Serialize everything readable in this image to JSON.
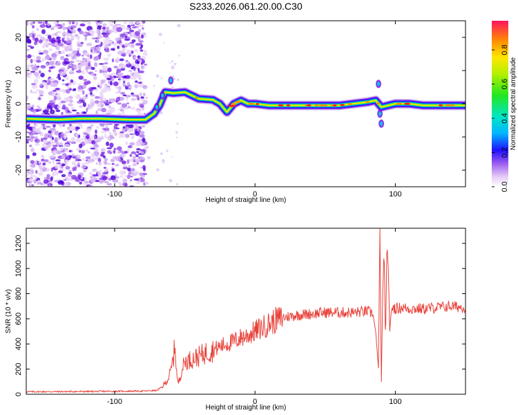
{
  "title": "S233.2026.061.20.00.C30",
  "chart_data": [
    {
      "type": "heatmap",
      "name": "spectrogram",
      "xlabel": "Height of straight line (km)",
      "ylabel": "Frequency (Hz)",
      "xlim": [
        -163,
        150
      ],
      "ylim": [
        -25,
        25
      ],
      "xticks": [
        -100,
        0,
        100
      ],
      "yticks": [
        -20,
        -10,
        0,
        10,
        20
      ],
      "colorbar": {
        "label": "Normalized spectral amplitude",
        "range": [
          0.0,
          0.97
        ],
        "ticks": [
          0.0,
          0.2,
          0.4,
          0.6,
          0.8
        ]
      },
      "ridge": {
        "x": [
          -163,
          -140,
          -125,
          -110,
          -90,
          -78,
          -72,
          -68,
          -64,
          -58,
          -50,
          -40,
          -30,
          -25,
          -20,
          -15,
          -10,
          -5,
          0,
          10,
          20,
          40,
          60,
          80,
          86,
          90,
          95,
          100,
          110,
          120,
          140,
          150
        ],
        "y": [
          -4.5,
          -4.8,
          -4.5,
          -4.5,
          -4.8,
          -4.8,
          -3,
          -0.5,
          3.5,
          3.2,
          3.5,
          1.5,
          1.2,
          0,
          -2.5,
          0,
          1,
          0,
          0,
          -0.5,
          -0.5,
          -0.5,
          -0.5,
          0.5,
          1,
          -1,
          -0.5,
          0,
          0,
          -0.5,
          -0.5,
          -0.5
        ]
      }
    },
    {
      "type": "line",
      "name": "snr",
      "xlabel": "Height of straight line (km)",
      "ylabel": "SNR (10 * v/v)",
      "xlim": [
        -163,
        150
      ],
      "ylim": [
        0,
        1320
      ],
      "xticks": [
        -100,
        0,
        100
      ],
      "yticks": [
        0,
        200,
        400,
        600,
        800,
        1000,
        1200
      ],
      "color": "#e8423a",
      "series": [
        {
          "name": "SNR",
          "x": [
            -163,
            -120,
            -80,
            -70,
            -66,
            -62,
            -60,
            -58,
            -57,
            -56,
            -55,
            -54,
            -52,
            -50,
            -45,
            -40,
            -35,
            -30,
            -25,
            -20,
            -15,
            -10,
            -5,
            0,
            5,
            10,
            15,
            20,
            25,
            30,
            40,
            50,
            60,
            70,
            80,
            84,
            86,
            88,
            89,
            90,
            91,
            92,
            93,
            94,
            95,
            96,
            97,
            98,
            100,
            105,
            110,
            120,
            130,
            140,
            150
          ],
          "y": [
            20,
            22,
            25,
            30,
            60,
            120,
            180,
            300,
            410,
            200,
            80,
            110,
            200,
            260,
            280,
            300,
            330,
            350,
            380,
            400,
            420,
            450,
            470,
            500,
            530,
            560,
            590,
            610,
            620,
            630,
            640,
            650,
            650,
            650,
            660,
            640,
            500,
            200,
            1320,
            60,
            800,
            1150,
            400,
            1200,
            1000,
            500,
            650,
            700,
            680,
            690,
            680,
            680,
            690,
            700,
            690
          ]
        }
      ]
    }
  ]
}
